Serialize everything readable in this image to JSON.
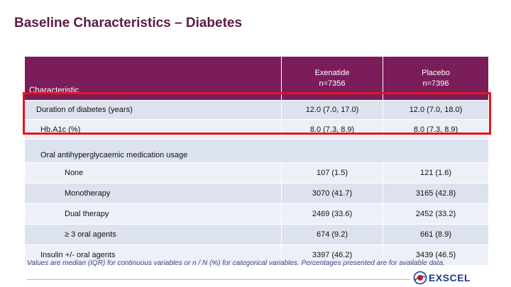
{
  "title": "Baseline Characteristics – Diabetes",
  "table": {
    "header": {
      "characteristic": "Characteristic",
      "arms": [
        {
          "name": "Exenatide",
          "n": "n=7356"
        },
        {
          "name": "Placebo",
          "n": "n=7396"
        }
      ]
    },
    "rows": [
      {
        "label": "Duration of diabetes (years)",
        "exenatide": "12.0 (7.0, 17.0)",
        "placebo": "12.0 (7.0, 18.0)"
      },
      {
        "label": "Hb.A1c (%)",
        "exenatide": "8.0 (7.3, 8.9)",
        "placebo": "8.0 (7.3, 8.9)"
      },
      {
        "label": "Oral antihyperglycaemic medication usage"
      },
      {
        "label": "None",
        "exenatide": "107 (1.5)",
        "placebo": "121 (1.6)"
      },
      {
        "label": "Monotherapy",
        "exenatide": "3070 (41.7)",
        "placebo": "3165 (42.8)"
      },
      {
        "label": "Dual therapy",
        "exenatide": "2469 (33.6)",
        "placebo": "2452 (33.2)"
      },
      {
        "label": "≥ 3 oral agents",
        "exenatide": "674 (9.2)",
        "placebo": "661 (8.9)"
      },
      {
        "label": "Insulin +/- oral agents",
        "exenatide": "3397 (46.2)",
        "placebo": "3439 (46.5)"
      }
    ]
  },
  "footnote": "Values are median (IQR) for continuous variables or n / N (%) for categorical variables.  Percentages presented are for available data.",
  "logo": {
    "text_main": "EXSCEL",
    "icon": "exscel-logo-mark"
  },
  "colors": {
    "header": "#7b1d5a",
    "title": "#5b1a44",
    "highlight": "#e8141b",
    "row_dark": "#dde2ef",
    "row_light": "#edf0f7"
  }
}
